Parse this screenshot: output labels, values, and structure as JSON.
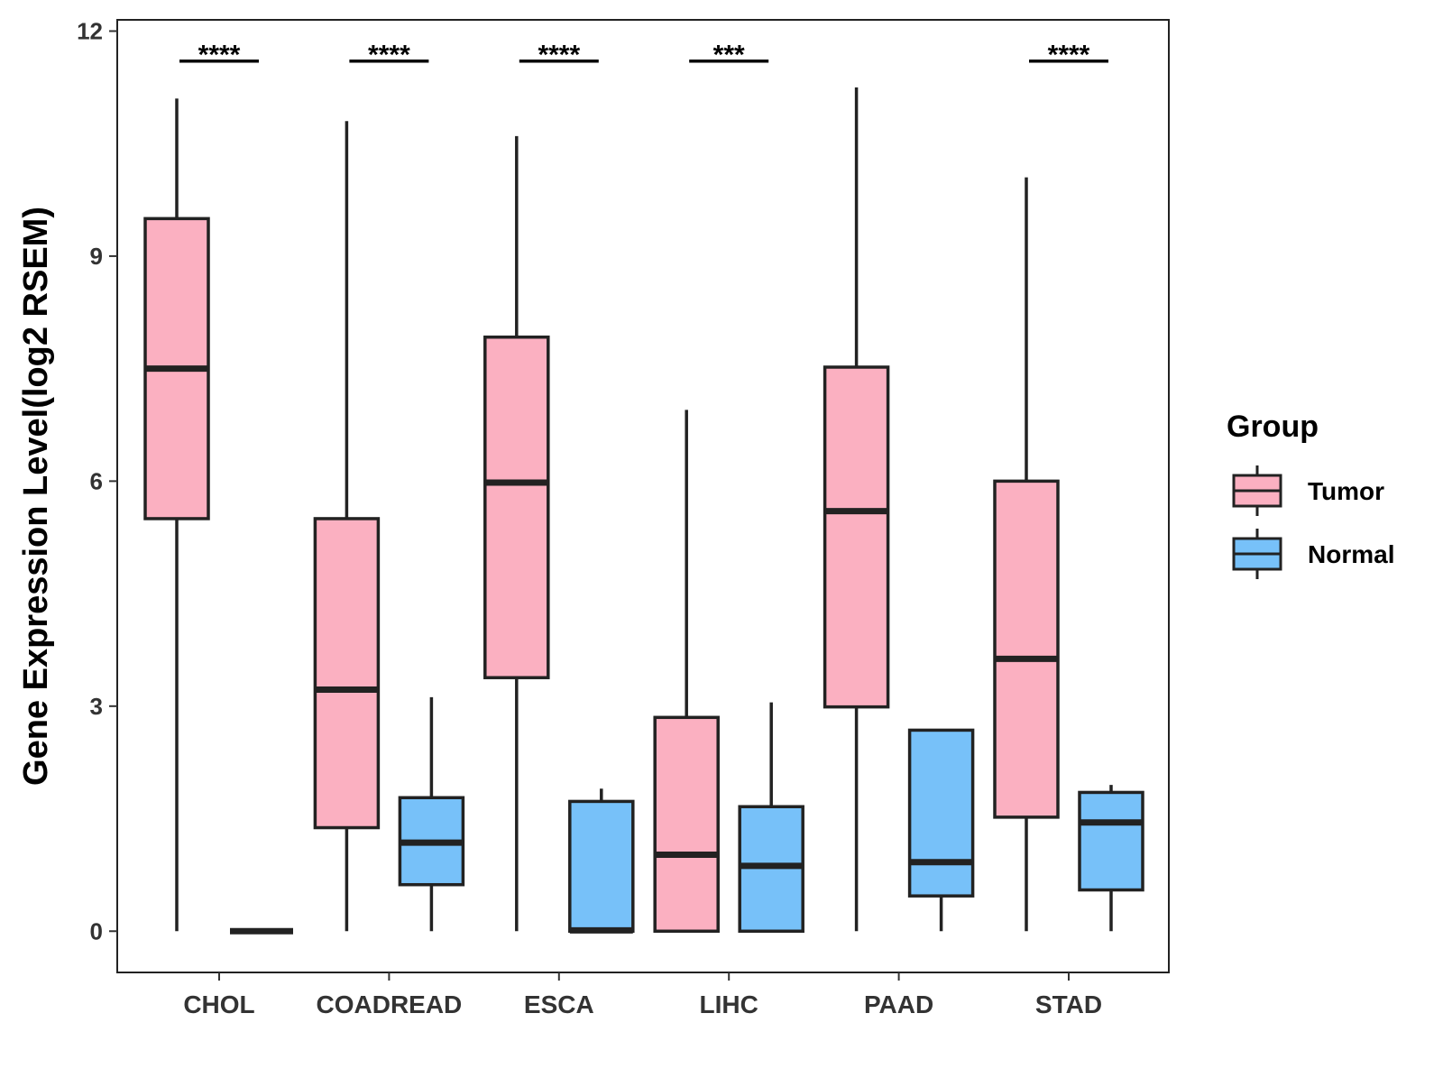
{
  "chart_data": {
    "type": "boxplot",
    "ylabel": "Gene Expression Level(log2 RSEM)",
    "xlabel": "",
    "ylim": [
      -0.55,
      12.15
    ],
    "yticks": [
      0,
      3,
      6,
      9,
      12
    ],
    "categories": [
      "CHOL",
      "COADREAD",
      "ESCA",
      "LIHC",
      "PAAD",
      "STAD"
    ],
    "legend": {
      "title": "Group",
      "position": "right",
      "entries": [
        {
          "name": "Tumor",
          "color": "#FBB0C1"
        },
        {
          "name": "Normal",
          "color": "#77C1F9"
        }
      ]
    },
    "series": [
      {
        "name": "Tumor",
        "color": "#FBB0C1",
        "boxes": [
          {
            "category": "CHOL",
            "min": 0,
            "q1": 5.5,
            "median": 7.5,
            "q3": 9.5,
            "max": 11.1
          },
          {
            "category": "COADREAD",
            "min": 0,
            "q1": 1.38,
            "median": 3.22,
            "q3": 5.5,
            "max": 10.8
          },
          {
            "category": "ESCA",
            "min": 0,
            "q1": 3.38,
            "median": 5.98,
            "q3": 7.92,
            "max": 10.6
          },
          {
            "category": "LIHC",
            "min": 0,
            "q1": 0,
            "median": 1.02,
            "q3": 2.85,
            "max": 6.95
          },
          {
            "category": "PAAD",
            "min": 0,
            "q1": 2.99,
            "median": 5.6,
            "q3": 7.52,
            "max": 11.25
          },
          {
            "category": "STAD",
            "min": 0,
            "q1": 1.52,
            "median": 3.63,
            "q3": 6.0,
            "max": 10.05
          }
        ]
      },
      {
        "name": "Normal",
        "color": "#77C1F9",
        "boxes": [
          {
            "category": "CHOL",
            "min": 0,
            "q1": 0,
            "median": 0,
            "q3": 0,
            "max": 0
          },
          {
            "category": "COADREAD",
            "min": 0,
            "q1": 0.62,
            "median": 1.18,
            "q3": 1.78,
            "max": 3.12
          },
          {
            "category": "ESCA",
            "min": 0,
            "q1": 0,
            "median": 0.01,
            "q3": 1.73,
            "max": 1.9
          },
          {
            "category": "LIHC",
            "min": 0,
            "q1": 0,
            "median": 0.87,
            "q3": 1.66,
            "max": 3.05
          },
          {
            "category": "PAAD",
            "min": 0,
            "q1": 0.47,
            "median": 0.92,
            "q3": 2.68,
            "max": 2.68
          },
          {
            "category": "STAD",
            "min": 0,
            "q1": 0.55,
            "median": 1.45,
            "q3": 1.85,
            "max": 1.95
          }
        ]
      }
    ],
    "significance": [
      {
        "category": "CHOL",
        "label": "****"
      },
      {
        "category": "COADREAD",
        "label": "****"
      },
      {
        "category": "ESCA",
        "label": "****"
      },
      {
        "category": "LIHC",
        "label": "***"
      },
      {
        "category": "PAAD",
        "label": ""
      },
      {
        "category": "STAD",
        "label": "****"
      }
    ],
    "significance_y": 11.6
  }
}
